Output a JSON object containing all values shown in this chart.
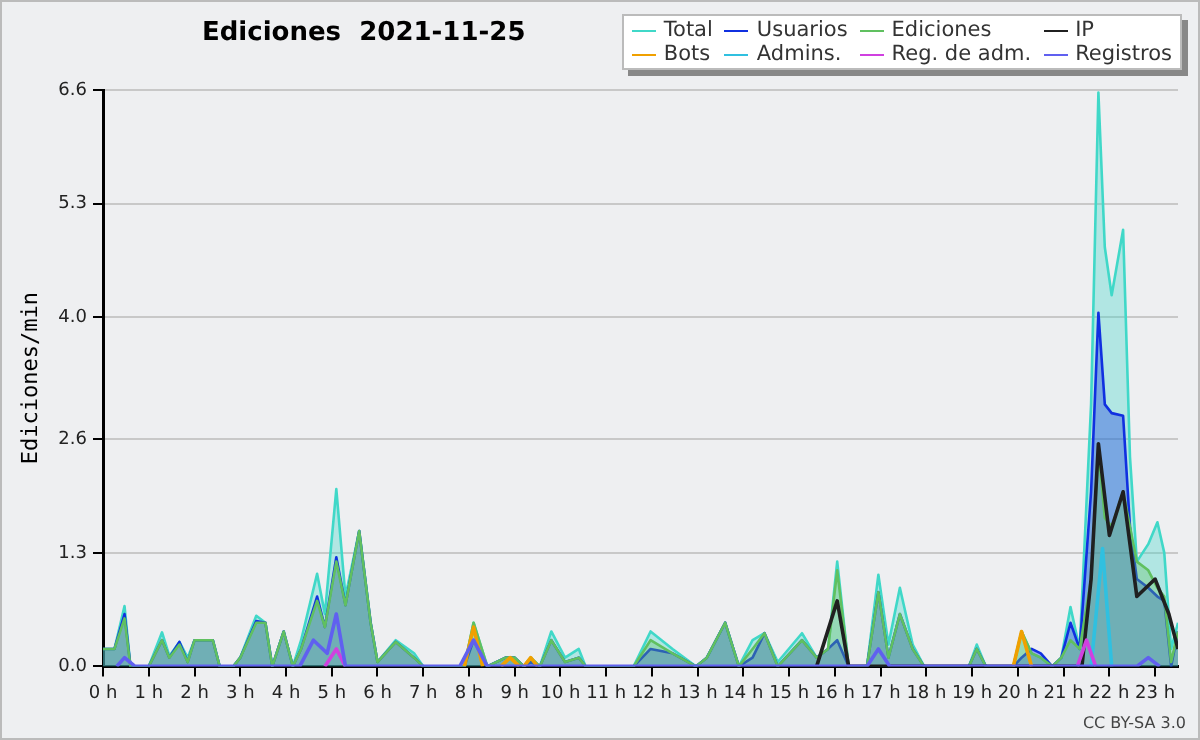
{
  "chart_data": {
    "type": "area",
    "title": "Ediciones  2021-11-25",
    "ylabel": "Ediciones/min",
    "annotations": [
      "CC BY-SA 3.0"
    ],
    "xlim": [
      0,
      23.5
    ],
    "xticks": [
      {
        "value": 0,
        "label": "0 h"
      },
      {
        "value": 1,
        "label": "1 h"
      },
      {
        "value": 2,
        "label": "2 h"
      },
      {
        "value": 3,
        "label": "3 h"
      },
      {
        "value": 4,
        "label": "4 h"
      },
      {
        "value": 5,
        "label": "5 h"
      },
      {
        "value": 6,
        "label": "6 h"
      },
      {
        "value": 7,
        "label": "7 h"
      },
      {
        "value": 8,
        "label": "8 h"
      },
      {
        "value": 9,
        "label": "9 h"
      },
      {
        "value": 10,
        "label": "10 h"
      },
      {
        "value": 11,
        "label": "11 h"
      },
      {
        "value": 12,
        "label": "12 h"
      },
      {
        "value": 13,
        "label": "13 h"
      },
      {
        "value": 14,
        "label": "14 h"
      },
      {
        "value": 15,
        "label": "15 h"
      },
      {
        "value": 16,
        "label": "16 h"
      },
      {
        "value": 17,
        "label": "17 h"
      },
      {
        "value": 18,
        "label": "18 h"
      },
      {
        "value": 19,
        "label": "19 h"
      },
      {
        "value": 20,
        "label": "20 h"
      },
      {
        "value": 21,
        "label": "21 h"
      },
      {
        "value": 22,
        "label": "22 h"
      },
      {
        "value": 23,
        "label": "23 h"
      }
    ],
    "ylim": [
      0,
      6.6
    ],
    "yticks": [
      {
        "value": 0,
        "label": "0.0"
      },
      1.3,
      2.6,
      {
        "value": 4,
        "label": "4.0"
      },
      5.3,
      6.6
    ],
    "grid": "y",
    "legend": "top right",
    "marker": "none",
    "x": [
      0,
      0.25,
      0.47,
      0.6,
      1.0,
      1.29,
      1.45,
      1.67,
      1.85,
      2.0,
      2.19,
      2.4,
      2.55,
      2.85,
      3.0,
      3.35,
      3.55,
      3.7,
      3.95,
      4.15,
      4.33,
      4.68,
      4.85,
      5.1,
      5.3,
      5.6,
      5.85,
      6.0,
      6.4,
      6.8,
      7.0,
      7.6,
      7.9,
      8.1,
      8.4,
      8.8,
      9.0,
      9.2,
      9.35,
      9.55,
      9.8,
      10.1,
      10.4,
      10.55,
      11.6,
      11.97,
      12.45,
      12.96,
      13.2,
      13.6,
      13.9,
      14.2,
      14.46,
      14.75,
      15.28,
      15.6,
      15.85,
      16.05,
      16.3,
      16.7,
      16.95,
      17.17,
      17.42,
      17.7,
      17.95,
      18.93,
      19.1,
      19.3,
      19.9,
      20.08,
      20.3,
      20.5,
      20.75,
      20.95,
      21.15,
      21.35,
      21.6,
      21.76,
      21.9,
      22.05,
      22.3,
      22.45,
      22.6,
      22.85,
      23.05,
      23.2,
      23.35,
      23.5
    ],
    "series": [
      {
        "name": "Total",
        "color": "#40d8c8",
        "values": [
          0.2,
          0.2,
          0.69,
          0,
          0,
          0.39,
          0.12,
          0.28,
          0.1,
          0.3,
          0.3,
          0.3,
          0,
          0,
          0.1,
          0.58,
          0.5,
          0,
          0.4,
          0,
          0.3,
          1.06,
          0.6,
          2.03,
          0.8,
          1.55,
          0.5,
          0.05,
          0.3,
          0.15,
          0,
          0,
          0,
          0.5,
          0,
          0.1,
          0.1,
          0,
          0.1,
          0,
          0.4,
          0.1,
          0.2,
          0,
          0,
          0.4,
          0.2,
          0,
          0.1,
          0.5,
          0,
          0.3,
          0.38,
          0.05,
          0.38,
          0.1,
          0.2,
          1.2,
          0,
          0,
          1.05,
          0.25,
          0.9,
          0.25,
          0,
          0,
          0.25,
          0,
          0,
          0.4,
          0.15,
          0.1,
          0,
          0.1,
          0.68,
          0.2,
          3.0,
          6.57,
          4.8,
          4.25,
          5.0,
          2.4,
          1.2,
          1.4,
          1.65,
          1.3,
          0.2,
          0.5
        ]
      },
      {
        "name": "Usuarios",
        "color": "#1030e0",
        "values": [
          0.2,
          0.2,
          0.6,
          0,
          0,
          0.3,
          0.1,
          0.28,
          0.05,
          0.3,
          0.3,
          0.3,
          0,
          0,
          0.1,
          0.52,
          0.5,
          0,
          0.4,
          0,
          0.2,
          0.8,
          0.45,
          1.25,
          0.7,
          1.55,
          0.5,
          0.05,
          0.28,
          0.1,
          0,
          0,
          0,
          0.3,
          0,
          0.1,
          0.1,
          0,
          0.05,
          0,
          0.3,
          0.05,
          0.1,
          0,
          0,
          0.2,
          0.15,
          0,
          0.1,
          0.5,
          0,
          0.1,
          0.38,
          0,
          0.3,
          0.1,
          0.2,
          0.3,
          0,
          0,
          0.85,
          0.1,
          0.6,
          0.2,
          0,
          0,
          0.2,
          0,
          0,
          0.1,
          0.2,
          0.15,
          0,
          0.1,
          0.5,
          0.2,
          2.0,
          4.05,
          3.0,
          2.9,
          2.87,
          1.6,
          1.0,
          0.9,
          0.8,
          0.75,
          0,
          0.4
        ]
      },
      {
        "name": "Ediciones",
        "color": "#60c060",
        "values": [
          0.2,
          0.2,
          0.55,
          0,
          0,
          0.3,
          0.1,
          0.25,
          0.05,
          0.3,
          0.3,
          0.3,
          0,
          0,
          0.1,
          0.5,
          0.5,
          0,
          0.4,
          0,
          0.2,
          0.75,
          0.45,
          1.2,
          0.7,
          1.55,
          0.5,
          0.05,
          0.28,
          0.1,
          0,
          0,
          0,
          0.5,
          0,
          0.1,
          0.1,
          0,
          0.1,
          0,
          0.3,
          0.05,
          0.1,
          0,
          0,
          0.3,
          0.15,
          0,
          0.1,
          0.5,
          0,
          0.2,
          0.38,
          0,
          0.3,
          0.1,
          0.2,
          1.1,
          0,
          0,
          0.85,
          0.1,
          0.6,
          0.2,
          0,
          0,
          0.2,
          0,
          0,
          0.4,
          0.15,
          0.1,
          0,
          0.1,
          0.3,
          0.2,
          1.0,
          2.5,
          1.7,
          1.6,
          2.0,
          1.6,
          1.2,
          1.1,
          0.9,
          0.8,
          0.05,
          0.4
        ]
      },
      {
        "name": "IP",
        "type": "line",
        "color": "#202020",
        "x": [
          15.6,
          16.05,
          16.3,
          21.4,
          21.6,
          21.76,
          22.0,
          22.3,
          22.6,
          23.0,
          23.3,
          23.5
        ],
        "values": [
          0,
          0.75,
          0,
          0,
          1.0,
          2.55,
          1.5,
          2.0,
          0.8,
          1.0,
          0.6,
          0.2
        ]
      },
      {
        "name": "Bots",
        "type": "line",
        "color": "#f0a000",
        "x": [
          7.9,
          8.1,
          8.3,
          8.5,
          8.7,
          8.9,
          9.1,
          9.15,
          9.2,
          9.35,
          9.5,
          19.0,
          19.9,
          20.08,
          20.3
        ],
        "values": [
          0,
          0.45,
          0,
          null,
          0,
          0.1,
          0,
          null,
          0,
          0.1,
          0,
          null,
          0,
          0.4,
          0
        ]
      },
      {
        "name": "Admins.",
        "type": "line",
        "color": "#30c0e0",
        "x": [
          21.6,
          21.85,
          22.05
        ],
        "values": [
          0,
          1.35,
          0
        ]
      },
      {
        "name": "Reg. de adm.",
        "type": "line",
        "color": "#d040e0",
        "x": [
          4.85,
          5.1,
          5.3,
          13.0,
          21.3,
          21.5,
          21.7
        ],
        "values": [
          0,
          0.2,
          0,
          null,
          0,
          0.3,
          0
        ]
      },
      {
        "name": "Registros",
        "type": "line",
        "color": "#6060f0",
        "x": [
          0.3,
          0.47,
          0.7,
          4.3,
          4.6,
          4.9,
          5.1,
          5.3,
          7.8,
          8.1,
          8.4,
          16.7,
          16.95,
          17.2,
          22.6,
          22.85,
          23.1
        ],
        "values": [
          0,
          0.1,
          0,
          0,
          0.3,
          0.15,
          0.6,
          0,
          0,
          0.3,
          0,
          0,
          0.2,
          0,
          0,
          0.1,
          0
        ]
      }
    ]
  }
}
